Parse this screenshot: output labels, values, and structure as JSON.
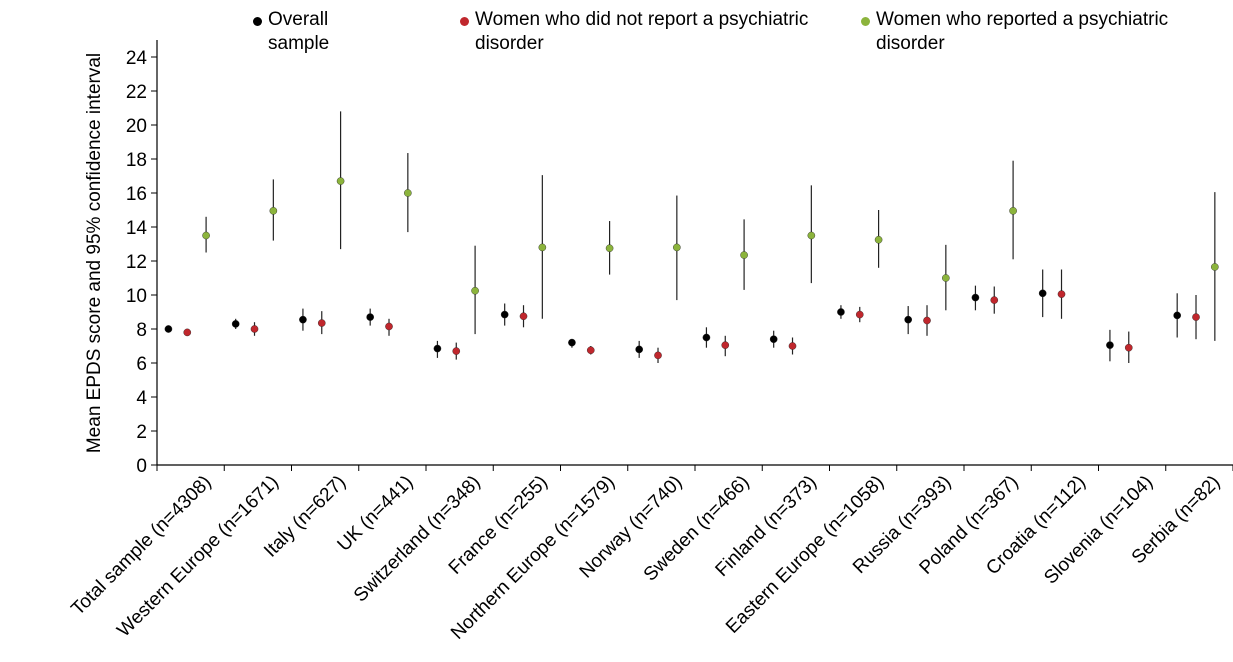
{
  "colors": {
    "overall": "#000000",
    "no_disorder": "#c0272d",
    "disorder": "#8cb43c",
    "axis": "#000000"
  },
  "chart_data": {
    "type": "scatter",
    "title": "",
    "xlabel": "",
    "ylabel": "Mean EPDS score and 95% confidence interval",
    "ylim": [
      0,
      25
    ],
    "yticks": [
      "0",
      "2",
      "4",
      "6",
      "8",
      "10",
      "12",
      "14",
      "16",
      "18",
      "20",
      "22",
      "24"
    ],
    "grid": false,
    "legend_position": "top",
    "categories": [
      "Total sample (n=4308)",
      "Western Europe (n=1671)",
      "Italy (n=627)",
      "UK (n=441)",
      "Switzerland (n=348)",
      "France (n=255)",
      "Northern Europe (n=1579)",
      "Norway (n=740)",
      "Sweden (n=466)",
      "Finland (n=373)",
      "Eastern Europe (n=1058)",
      "Russia (n=393)",
      "Poland (n=367)",
      "Croatia (n=112)",
      "Slovenia (n=104)",
      "Serbia (n=82)"
    ],
    "series": [
      {
        "name": "Overall sample",
        "color_key": "overall",
        "values": [
          8.0,
          8.3,
          8.55,
          8.7,
          6.85,
          8.85,
          7.2,
          6.8,
          7.5,
          7.4,
          9.0,
          8.55,
          9.85,
          10.1,
          7.05,
          8.8
        ],
        "ci_low": [
          7.8,
          8.0,
          7.9,
          8.2,
          6.3,
          8.2,
          6.9,
          6.3,
          6.9,
          6.9,
          8.6,
          7.7,
          9.1,
          8.7,
          6.1,
          7.5
        ],
        "ci_high": [
          8.2,
          8.6,
          9.2,
          9.2,
          7.3,
          9.5,
          7.4,
          7.3,
          8.1,
          7.9,
          9.4,
          9.35,
          10.55,
          11.5,
          7.95,
          10.1
        ]
      },
      {
        "name": "Women who did not report a psychiatric disorder",
        "color_key": "no_disorder",
        "values": [
          7.8,
          8.0,
          8.35,
          8.15,
          6.7,
          8.75,
          6.75,
          6.45,
          7.05,
          7.0,
          8.85,
          8.5,
          9.7,
          10.05,
          6.9,
          8.7
        ],
        "ci_low": [
          7.6,
          7.6,
          7.7,
          7.6,
          6.2,
          8.1,
          6.5,
          6.0,
          6.4,
          6.5,
          8.4,
          7.6,
          8.9,
          8.6,
          6.0,
          7.4
        ],
        "ci_high": [
          8.0,
          8.4,
          9.05,
          8.6,
          7.2,
          9.4,
          7.0,
          6.9,
          7.6,
          7.5,
          9.3,
          9.4,
          10.5,
          11.5,
          7.85,
          10.0
        ]
      },
      {
        "name": "Women who reported a psychiatric disorder",
        "color_key": "disorder",
        "values": [
          13.5,
          14.95,
          16.7,
          16.0,
          10.25,
          12.8,
          12.75,
          12.8,
          12.35,
          13.5,
          13.25,
          11.0,
          14.95,
          null,
          null,
          11.65
        ],
        "ci_low": [
          12.5,
          13.2,
          12.7,
          13.7,
          7.7,
          8.6,
          11.2,
          9.7,
          10.3,
          10.7,
          11.6,
          9.1,
          12.1,
          null,
          null,
          7.3
        ],
        "ci_high": [
          14.6,
          16.8,
          20.8,
          18.35,
          12.9,
          17.05,
          14.35,
          15.85,
          14.45,
          16.45,
          15.0,
          12.95,
          17.9,
          null,
          null,
          16.05
        ]
      }
    ]
  }
}
